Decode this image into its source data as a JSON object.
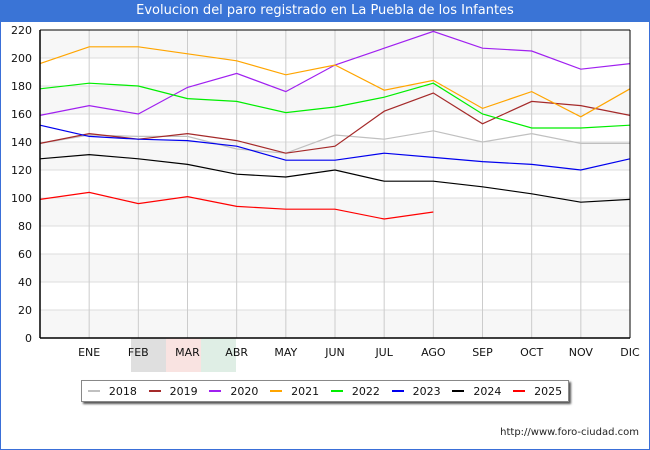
{
  "chart_data": {
    "type": "line",
    "title": "Evolucion del paro registrado en La Puebla de los Infantes",
    "xlabel": "",
    "ylabel": "",
    "categories": [
      "",
      "ENE",
      "FEB",
      "MAR",
      "ABR",
      "MAY",
      "JUN",
      "JUL",
      "AGO",
      "SEP",
      "OCT",
      "NOV",
      "DIC"
    ],
    "ylim": [
      0,
      220
    ],
    "yticks": [
      0,
      20,
      40,
      60,
      80,
      100,
      120,
      140,
      160,
      180,
      200,
      220
    ],
    "grid": true,
    "legend_position": "bottom",
    "series": [
      {
        "name": "2018",
        "color": "#c0c0c0",
        "values": [
          139,
          145,
          144,
          144,
          135,
          132,
          145,
          142,
          148,
          140,
          146,
          139,
          139
        ]
      },
      {
        "name": "2019",
        "color": "#a52a2a",
        "values": [
          139,
          146,
          142,
          146,
          141,
          132,
          137,
          162,
          175,
          153,
          169,
          166,
          159
        ]
      },
      {
        "name": "2020",
        "color": "#a020f0",
        "values": [
          159,
          166,
          160,
          179,
          189,
          176,
          195,
          207,
          219,
          207,
          205,
          192,
          196
        ]
      },
      {
        "name": "2021",
        "color": "#ffa500",
        "values": [
          196,
          208,
          208,
          203,
          198,
          188,
          195,
          177,
          184,
          164,
          176,
          158,
          178
        ]
      },
      {
        "name": "2022",
        "color": "#00ee00",
        "values": [
          178,
          182,
          180,
          171,
          169,
          161,
          165,
          172,
          182,
          160,
          150,
          150,
          152
        ]
      },
      {
        "name": "2023",
        "color": "#0000ee",
        "values": [
          152,
          144,
          142,
          141,
          137,
          127,
          127,
          132,
          129,
          126,
          124,
          120,
          128
        ]
      },
      {
        "name": "2024",
        "color": "#000000",
        "values": [
          128,
          131,
          128,
          124,
          117,
          115,
          120,
          112,
          112,
          108,
          103,
          97,
          99
        ]
      },
      {
        "name": "2025",
        "color": "#ff0000",
        "values": [
          99,
          104,
          96,
          101,
          94,
          92,
          92,
          85,
          90,
          null,
          null,
          null,
          null
        ]
      }
    ]
  },
  "footer": {
    "source_url": "http://www.foro-ciudad.com"
  }
}
